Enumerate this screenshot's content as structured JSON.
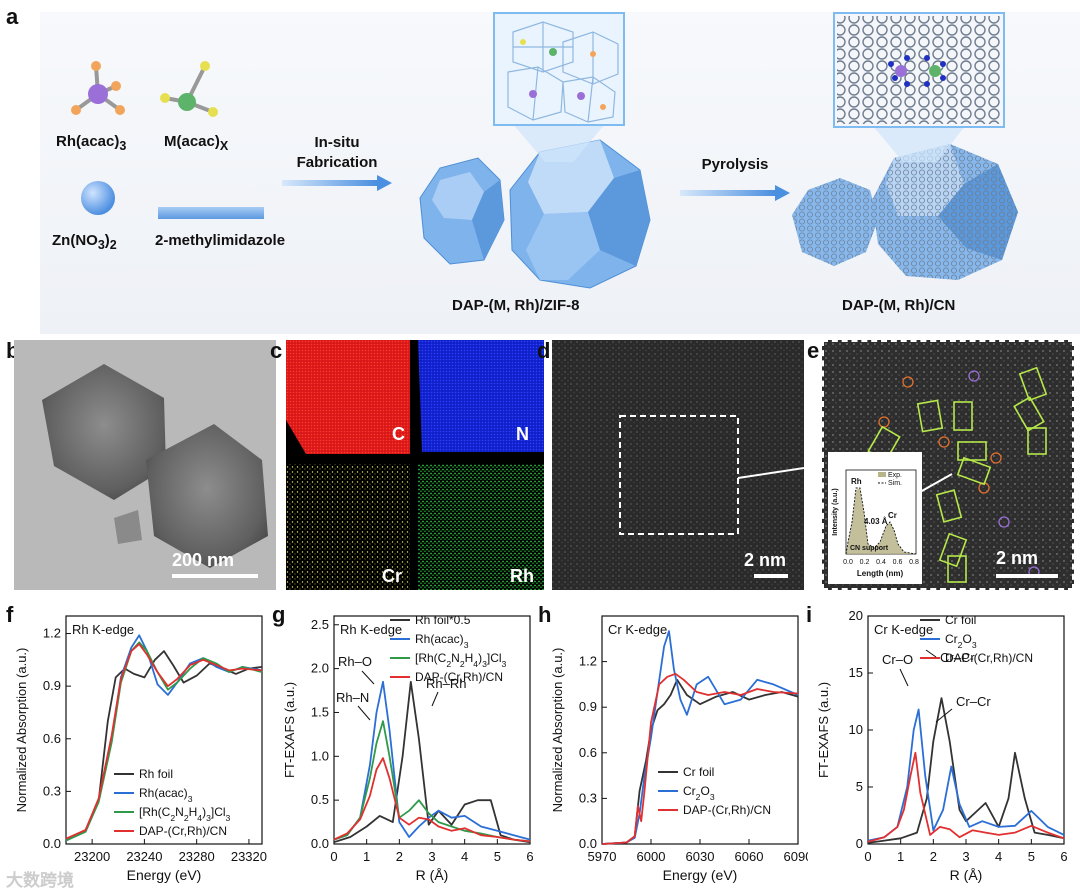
{
  "panel_labels": {
    "a": "a",
    "b": "b",
    "c": "c",
    "d": "d",
    "e": "e",
    "f": "f",
    "g": "g",
    "h": "h",
    "i": "i"
  },
  "scheme": {
    "precursor1_main": "Rh(acac)",
    "precursor1_sub": "3",
    "precursor2_main": "M(acac)",
    "precursor2_sub": "X",
    "precursor3_main": "Zn",
    "precursor3_part": "(NO",
    "precursor3_sub1": "3",
    "precursor3_close": ")",
    "precursor3_sub2": "2",
    "precursor4": "2-methylimidazole",
    "step1_line1": "In-situ",
    "step1_line2": "Fabrication",
    "step2": "Pyrolysis",
    "product1": "DAP-(M, Rh)/ZIF-8",
    "product2": "DAP-(M, Rh)/CN"
  },
  "tem": {
    "scale_b": "200 nm",
    "scale_d": "2 nm",
    "scale_e": "2 nm"
  },
  "eds": {
    "c": "C",
    "n": "N",
    "cr": "Cr",
    "rh": "Rh",
    "colors": {
      "c": "#e01010",
      "n": "#1020d8",
      "cr": "#e8e060",
      "rh": "#30c040"
    }
  },
  "inset": {
    "ylabel": "Intensity (a.u.)",
    "xlabel": "Length (nm)",
    "legend_exp": "Exp.",
    "legend_sim": "Sim.",
    "rh": "Rh",
    "cr": "Cr",
    "dist": "4.03 Å",
    "support": "CN support",
    "ticks": [
      "0.0",
      "0.2",
      "0.4",
      "0.6",
      "0.8"
    ]
  },
  "watermark": "大数跨境",
  "chart_data": [
    {
      "panel": "f",
      "type": "line",
      "title": "Rh K-edge",
      "xlabel": "Energy (eV)",
      "ylabel": "Normalized Absorption (a.u.)",
      "xlim": [
        23180,
        23330
      ],
      "ylim": [
        0,
        1.3
      ],
      "xticks": [
        23200,
        23240,
        23280,
        23320
      ],
      "yticks": [
        0.0,
        0.3,
        0.6,
        0.9,
        1.2
      ],
      "xticklabels": [
        "23200",
        "23240",
        "23280",
        "23320"
      ],
      "yticklabels": [
        "0.0",
        "0.3",
        "0.6",
        "0.9",
        "1.2"
      ],
      "legend_position": "bottom-left",
      "series": [
        {
          "name": "Rh foil",
          "color": "#333333",
          "x": [
            23180,
            23195,
            23205,
            23212,
            23218,
            23225,
            23232,
            23240,
            23248,
            23255,
            23262,
            23270,
            23280,
            23290,
            23300,
            23310,
            23320,
            23330
          ],
          "y": [
            0.02,
            0.08,
            0.25,
            0.7,
            0.95,
            1.0,
            0.97,
            0.95,
            1.05,
            1.1,
            1.02,
            0.92,
            0.96,
            1.03,
            1.0,
            0.97,
            1.0,
            1.01
          ]
        },
        {
          "name": "Rh(acac)3",
          "color": "#2b6fd6",
          "x": [
            23180,
            23195,
            23205,
            23215,
            23222,
            23230,
            23236,
            23242,
            23250,
            23258,
            23265,
            23275,
            23285,
            23295,
            23305,
            23315,
            23330
          ],
          "y": [
            0.02,
            0.07,
            0.25,
            0.6,
            0.95,
            1.12,
            1.19,
            1.1,
            0.91,
            0.85,
            0.92,
            1.03,
            1.06,
            1.01,
            0.98,
            1.01,
            0.99
          ]
        },
        {
          "name": "[Rh(C2N2H4)3]Cl3",
          "color": "#2f9a4a",
          "x": [
            23180,
            23195,
            23205,
            23215,
            23222,
            23230,
            23236,
            23242,
            23250,
            23258,
            23265,
            23275,
            23285,
            23295,
            23305,
            23315,
            23330
          ],
          "y": [
            0.02,
            0.07,
            0.24,
            0.58,
            0.92,
            1.1,
            1.15,
            1.1,
            0.98,
            0.88,
            0.92,
            1.0,
            1.06,
            1.03,
            0.98,
            1.01,
            0.98
          ]
        },
        {
          "name": "DAP-(Cr,Rh)/CN",
          "color": "#e03030",
          "x": [
            23180,
            23195,
            23205,
            23215,
            23222,
            23230,
            23236,
            23242,
            23250,
            23258,
            23265,
            23275,
            23285,
            23295,
            23305,
            23315,
            23330
          ],
          "y": [
            0.03,
            0.08,
            0.26,
            0.62,
            0.94,
            1.1,
            1.14,
            1.08,
            0.98,
            0.9,
            0.94,
            1.02,
            1.05,
            1.02,
            0.99,
            1.0,
            0.99
          ]
        }
      ],
      "legend_labels": [
        {
          "main": "Rh foil",
          "sub": ""
        },
        {
          "main": "Rh(acac)",
          "sub": "3"
        },
        {
          "main": "[Rh(C",
          "sub": "2",
          "main2": "N",
          "sub2": "2",
          "main3": "H",
          "sub3": "4",
          "main4": ")",
          "sub4": "3",
          "main5": "]Cl",
          "sub5": "3"
        },
        {
          "main": "DAP-(Cr,Rh)/CN",
          "sub": ""
        }
      ]
    },
    {
      "panel": "g",
      "type": "line",
      "title": "Rh K-edge",
      "xlabel": "R (Å)",
      "ylabel": "FT-EXAFS (a.u.)",
      "xlim": [
        0,
        6
      ],
      "ylim": [
        0,
        2.6
      ],
      "xticks": [
        0,
        1,
        2,
        3,
        4,
        5,
        6
      ],
      "yticks": [
        0.0,
        0.5,
        1.0,
        1.5,
        2.0,
        2.5
      ],
      "xticklabels": [
        "0",
        "1",
        "2",
        "3",
        "4",
        "5",
        "6"
      ],
      "yticklabels": [
        "0.0",
        "0.5",
        "1.0",
        "1.5",
        "2.0",
        "2.5"
      ],
      "legend_position": "top-right",
      "annotations": [
        "Rh–O",
        "Rh–N",
        "Rh–Rh"
      ],
      "series": [
        {
          "name": "Rh foil*0.5",
          "color": "#333333",
          "x": [
            0,
            0.5,
            1.0,
            1.4,
            1.8,
            2.1,
            2.35,
            2.6,
            2.9,
            3.2,
            3.6,
            4.0,
            4.4,
            4.8,
            5.1,
            5.5,
            6.0
          ],
          "y": [
            0.02,
            0.08,
            0.2,
            0.32,
            0.25,
            1.0,
            1.85,
            1.2,
            0.22,
            0.38,
            0.22,
            0.45,
            0.5,
            0.5,
            0.1,
            0.05,
            0.02
          ]
        },
        {
          "name": "Rh(acac)3",
          "color": "#2b6fd6",
          "x": [
            0,
            0.4,
            0.8,
            1.1,
            1.3,
            1.5,
            1.7,
            2.0,
            2.3,
            2.6,
            2.9,
            3.2,
            3.6,
            4.0,
            4.5,
            5.0,
            5.5,
            6.0
          ],
          "y": [
            0.05,
            0.1,
            0.3,
            0.9,
            1.5,
            1.85,
            1.3,
            0.25,
            0.08,
            0.2,
            0.3,
            0.38,
            0.3,
            0.32,
            0.2,
            0.15,
            0.1,
            0.05
          ]
        },
        {
          "name": "[Rh(C2N2H4)3]Cl3",
          "color": "#2f9a4a",
          "x": [
            0,
            0.4,
            0.8,
            1.1,
            1.3,
            1.5,
            1.7,
            2.0,
            2.3,
            2.6,
            2.9,
            3.2,
            3.6,
            4.0,
            4.5,
            5.0,
            5.5,
            6.0
          ],
          "y": [
            0.05,
            0.1,
            0.3,
            0.75,
            1.15,
            1.4,
            1.0,
            0.3,
            0.38,
            0.5,
            0.35,
            0.25,
            0.2,
            0.15,
            0.12,
            0.08,
            0.05,
            0.03
          ]
        },
        {
          "name": "DAP-(Cr,Rh)/CN",
          "color": "#e03030",
          "x": [
            0,
            0.4,
            0.8,
            1.1,
            1.3,
            1.5,
            1.7,
            2.0,
            2.3,
            2.6,
            2.9,
            3.2,
            3.6,
            4.0,
            4.5,
            5.0,
            5.5,
            6.0
          ],
          "y": [
            0.05,
            0.12,
            0.28,
            0.55,
            0.85,
            0.98,
            0.75,
            0.3,
            0.22,
            0.3,
            0.28,
            0.2,
            0.15,
            0.18,
            0.1,
            0.08,
            0.05,
            0.03
          ]
        }
      ],
      "legend_labels": [
        {
          "main": "Rh foil*0.5",
          "sub": ""
        },
        {
          "main": "Rh(acac)",
          "sub": "3"
        },
        {
          "main": "[Rh(C",
          "sub": "2",
          "main2": "N",
          "sub2": "2",
          "main3": "H",
          "sub3": "4",
          "main4": ")",
          "sub4": "3",
          "main5": "]Cl",
          "sub5": "3"
        },
        {
          "main": "DAP-(Cr,Rh)/CN",
          "sub": ""
        }
      ]
    },
    {
      "panel": "h",
      "type": "line",
      "title": "Cr K-edge",
      "xlabel": "Energy (eV)",
      "ylabel": "Normalized Absorption (a.u.)",
      "xlim": [
        5970,
        6090
      ],
      "ylim": [
        0,
        1.5
      ],
      "xticks": [
        5970,
        6000,
        6030,
        6060,
        6090
      ],
      "yticks": [
        0.0,
        0.3,
        0.6,
        0.9,
        1.2
      ],
      "xticklabels": [
        "5970",
        "6000",
        "6030",
        "6060",
        "6090"
      ],
      "yticklabels": [
        "0.0",
        "0.3",
        "0.6",
        "0.9",
        "1.2"
      ],
      "legend_position": "bottom-right",
      "series": [
        {
          "name": "Cr foil",
          "color": "#333333",
          "x": [
            5970,
            5985,
            5990,
            5993,
            5997,
            6000,
            6004,
            6008,
            6012,
            6016,
            6022,
            6030,
            6040,
            6050,
            6060,
            6070,
            6080,
            6090
          ],
          "y": [
            0.0,
            0.01,
            0.05,
            0.35,
            0.55,
            0.75,
            0.88,
            0.92,
            0.98,
            1.08,
            0.98,
            0.92,
            0.97,
            1.0,
            0.95,
            0.98,
            1.0,
            0.97
          ]
        },
        {
          "name": "Cr2O3",
          "color": "#2b6fd6",
          "x": [
            5970,
            5985,
            5990,
            5993,
            5996,
            6000,
            6004,
            6008,
            6011,
            6014,
            6018,
            6022,
            6028,
            6035,
            6045,
            6055,
            6065,
            6075,
            6090
          ],
          "y": [
            0.0,
            0.01,
            0.04,
            0.2,
            0.45,
            0.7,
            1.0,
            1.3,
            1.4,
            1.15,
            0.95,
            0.85,
            1.05,
            1.1,
            0.92,
            0.95,
            1.08,
            1.05,
            0.98
          ]
        },
        {
          "name": "DAP-(Cr,Rh)/CN",
          "color": "#e03030",
          "x": [
            5970,
            5985,
            5990,
            5992,
            5994,
            5996,
            6000,
            6005,
            6010,
            6015,
            6020,
            6028,
            6035,
            6045,
            6055,
            6065,
            6075,
            6090
          ],
          "y": [
            0.0,
            0.01,
            0.05,
            0.25,
            0.15,
            0.35,
            0.8,
            1.05,
            1.1,
            1.12,
            1.08,
            1.0,
            0.98,
            1.0,
            0.98,
            1.02,
            1.0,
            0.99
          ]
        }
      ],
      "legend_labels": [
        {
          "main": "Cr foil",
          "sub": ""
        },
        {
          "main": "Cr",
          "sub": "2",
          "main2": "O",
          "sub2": "3"
        },
        {
          "main": "DAP-(Cr,Rh)/CN",
          "sub": ""
        }
      ]
    },
    {
      "panel": "i",
      "type": "line",
      "title": "Cr K-edge",
      "xlabel": "R (Å)",
      "ylabel": "FT-EXAFS (a.u.)",
      "xlim": [
        0,
        6
      ],
      "ylim": [
        0,
        20
      ],
      "xticks": [
        0,
        1,
        2,
        3,
        4,
        5,
        6
      ],
      "yticks": [
        0,
        5,
        10,
        15,
        20
      ],
      "xticklabels": [
        "0",
        "1",
        "2",
        "3",
        "4",
        "5",
        "6"
      ],
      "yticklabels": [
        "0",
        "5",
        "10",
        "15",
        "20"
      ],
      "legend_position": "top-right",
      "annotations": [
        "Cr–O",
        "Cr–Cr",
        "Cr–Cr"
      ],
      "series": [
        {
          "name": "Cr foil",
          "color": "#333333",
          "x": [
            0,
            0.5,
            1.0,
            1.5,
            1.8,
            2.0,
            2.25,
            2.5,
            2.8,
            3.0,
            3.3,
            3.6,
            4.0,
            4.3,
            4.5,
            4.8,
            5.1,
            5.5,
            6.0
          ],
          "y": [
            0.1,
            0.3,
            0.5,
            1.0,
            4.0,
            9.0,
            12.8,
            9.0,
            3.0,
            2.0,
            2.8,
            3.6,
            1.5,
            4.0,
            8.0,
            4.0,
            1.0,
            0.8,
            0.5
          ]
        },
        {
          "name": "Cr2O3",
          "color": "#2b6fd6",
          "x": [
            0,
            0.5,
            0.9,
            1.2,
            1.4,
            1.55,
            1.75,
            2.0,
            2.3,
            2.55,
            2.8,
            3.1,
            3.5,
            4.0,
            4.5,
            5.0,
            5.5,
            6.0
          ],
          "y": [
            0.3,
            0.6,
            1.5,
            5.0,
            10.0,
            11.8,
            6.0,
            1.2,
            3.0,
            6.8,
            3.5,
            1.5,
            2.0,
            1.5,
            1.6,
            2.9,
            1.5,
            0.8
          ]
        },
        {
          "name": "DAP-(Cr,Rh)/CN",
          "color": "#e03030",
          "x": [
            0,
            0.5,
            0.9,
            1.1,
            1.3,
            1.45,
            1.6,
            1.9,
            2.2,
            2.5,
            2.8,
            3.2,
            3.6,
            4.0,
            4.5,
            5.0,
            5.5,
            6.0
          ],
          "y": [
            0.2,
            0.6,
            1.5,
            3.0,
            6.0,
            8.0,
            4.5,
            0.8,
            1.5,
            1.3,
            0.6,
            1.2,
            1.0,
            0.8,
            1.0,
            1.6,
            1.0,
            0.5
          ]
        }
      ],
      "legend_labels": [
        {
          "main": "Cr foil",
          "sub": ""
        },
        {
          "main": "Cr",
          "sub": "2",
          "main2": "O",
          "sub2": "3"
        },
        {
          "main": "DAP-(Cr,Rh)/CN",
          "sub": ""
        }
      ]
    }
  ]
}
